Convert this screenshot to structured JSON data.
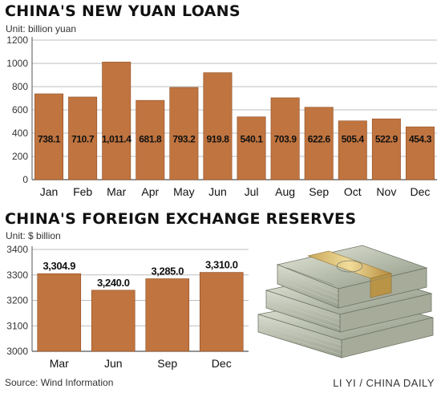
{
  "colors": {
    "bar": "#c0743f",
    "bar_edge": "#8f4e24",
    "grid": "#bdbdbd",
    "axis": "#555555"
  },
  "chart_data": [
    {
      "type": "bar",
      "title": "CHINA'S NEW YUAN LOANS",
      "unit": "Unit: billion yuan",
      "categories": [
        "Jan",
        "Feb",
        "Mar",
        "Apr",
        "May",
        "Jun",
        "Jul",
        "Aug",
        "Sep",
        "Oct",
        "Nov",
        "Dec"
      ],
      "values": [
        738.1,
        710.7,
        1011.4,
        681.8,
        793.2,
        919.8,
        540.1,
        703.9,
        622.6,
        505.4,
        522.9,
        454.3
      ],
      "data_labels": [
        "738.1",
        "710.7",
        "1,011.4",
        "681.8",
        "793.2",
        "919.8",
        "540.1",
        "703.9",
        "622.6",
        "505.4",
        "522.9",
        "454.3"
      ],
      "ylim": [
        0,
        1200
      ],
      "yticks": [
        0,
        200,
        400,
        600,
        800,
        1000,
        1200
      ],
      "grid": true,
      "label_position": "inside-bottom"
    },
    {
      "type": "bar",
      "title": "CHINA'S FOREIGN EXCHANGE RESERVES",
      "unit": "Unit: $ billion",
      "categories": [
        "Mar",
        "Jun",
        "Sep",
        "Dec"
      ],
      "values": [
        3304.9,
        3240.0,
        3285.0,
        3310.0
      ],
      "data_labels": [
        "3,304.9",
        "3,240.0",
        "3,285.0",
        "3,310.0"
      ],
      "ylim": [
        3000,
        3400
      ],
      "yticks": [
        3000,
        3100,
        3200,
        3300,
        3400
      ],
      "grid": true,
      "label_position": "above"
    }
  ],
  "footer": {
    "source": "Source: Wind Information",
    "credit": "LI YI / CHINA DAILY"
  },
  "image": {
    "icon": "stack-of-dollar-bills"
  }
}
